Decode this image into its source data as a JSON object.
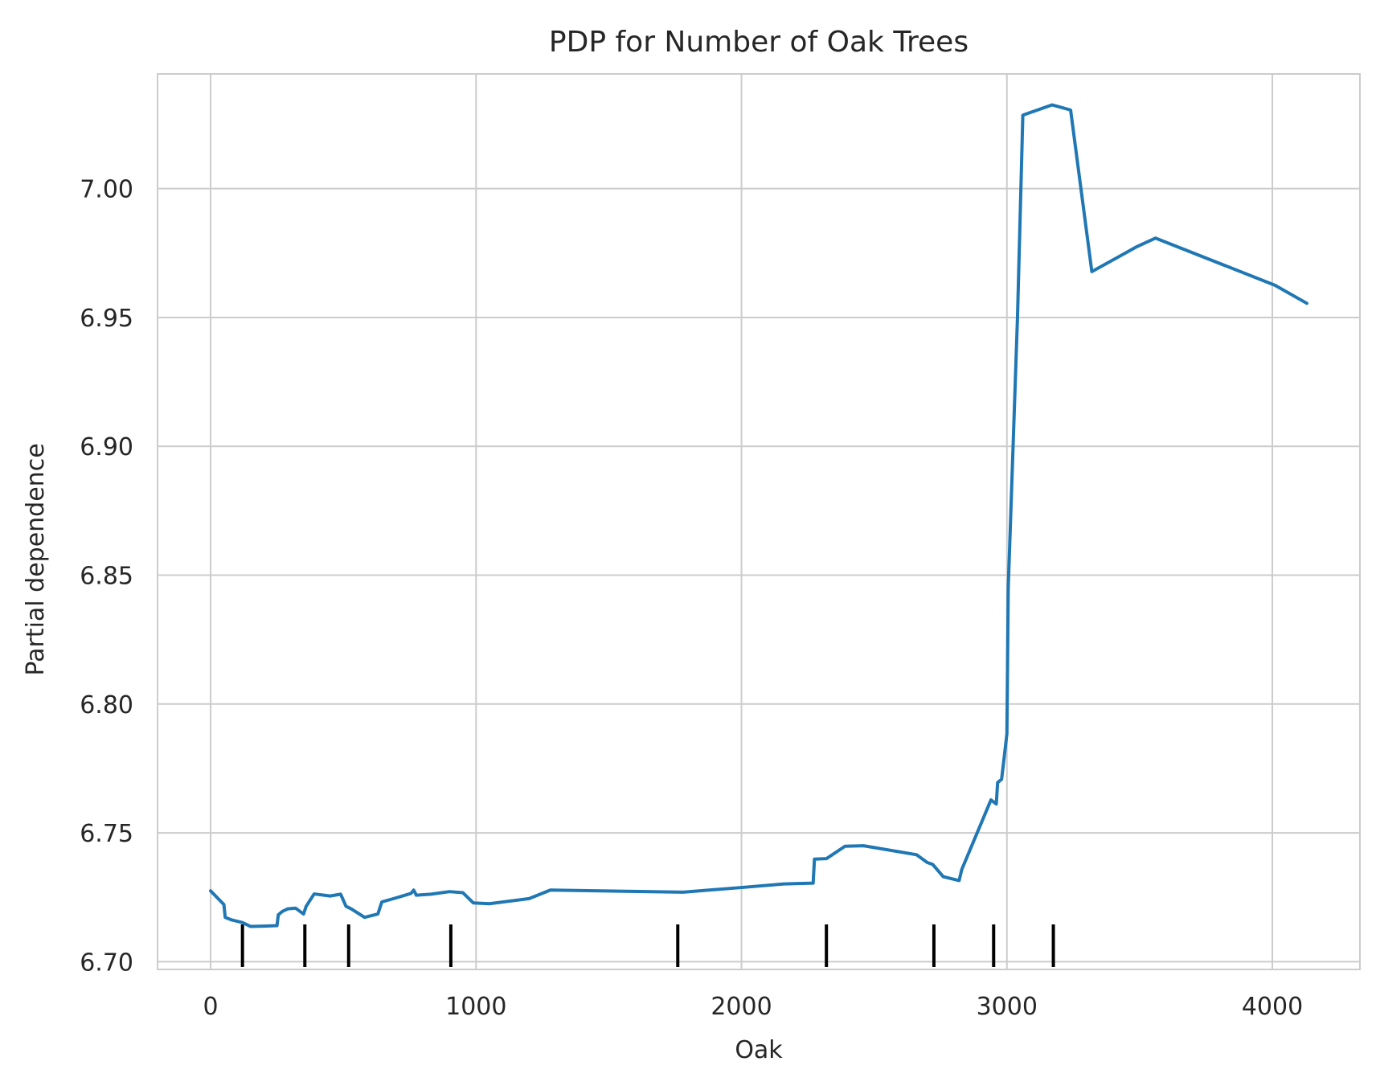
{
  "chart_data": {
    "type": "line",
    "title": "PDP for Number of Oak Trees",
    "xlabel": "Oak",
    "ylabel": "Partial dependence",
    "xlim": [
      -200,
      4330
    ],
    "ylim": [
      6.697,
      7.0445
    ],
    "x_ticks": [
      0,
      1000,
      2000,
      3000,
      4000
    ],
    "x_tick_labels": [
      "0",
      "1000",
      "2000",
      "3000",
      "4000"
    ],
    "y_ticks": [
      6.7,
      6.75,
      6.8,
      6.85,
      6.9,
      6.95,
      7.0
    ],
    "y_tick_labels": [
      "6.70",
      "6.75",
      "6.80",
      "6.85",
      "6.90",
      "6.95",
      "7.00"
    ],
    "grid": true,
    "line_color": "#1f77b4",
    "rug_color": "#000000",
    "series": [
      {
        "x": [
          0,
          50,
          55,
          80,
          120,
          150,
          200,
          250,
          255,
          270,
          290,
          320,
          350,
          360,
          390,
          450,
          490,
          510,
          530,
          580,
          630,
          645,
          700,
          755,
          765,
          775,
          830,
          900,
          950,
          990,
          1050,
          1200,
          1280,
          1780,
          2000,
          2160,
          2270,
          2275,
          2320,
          2390,
          2460,
          2660,
          2700,
          2720,
          2760,
          2820,
          2830,
          2940,
          2960,
          2965,
          2980,
          2990,
          3000,
          3005,
          3040,
          3060,
          3170,
          3240,
          3320,
          3490,
          3560,
          4010,
          4130
        ],
        "y": [
          6.7275,
          6.7222,
          6.7172,
          6.7162,
          6.7152,
          6.7137,
          6.7138,
          6.714,
          6.7182,
          6.7195,
          6.7205,
          6.7208,
          6.7185,
          6.7215,
          6.7263,
          6.7255,
          6.7262,
          6.7215,
          6.7205,
          6.7172,
          6.7185,
          6.7232,
          6.7248,
          6.7265,
          6.7278,
          6.7258,
          6.7262,
          6.7272,
          6.7268,
          6.7228,
          6.7225,
          6.7245,
          6.7278,
          6.727,
          6.7288,
          6.7302,
          6.7305,
          6.7398,
          6.74,
          6.7448,
          6.745,
          6.7415,
          6.7385,
          6.7378,
          6.733,
          6.7315,
          6.7358,
          6.7628,
          6.7612,
          6.7695,
          6.7708,
          6.7795,
          6.7885,
          6.845,
          6.9505,
          7.0285,
          7.0325,
          7.0305,
          6.9678,
          6.9775,
          6.9808,
          6.9625,
          6.9555
        ]
      }
    ],
    "rug_x": [
      120,
      355,
      520,
      905,
      1760,
      2320,
      2725,
      2950,
      3175
    ]
  }
}
